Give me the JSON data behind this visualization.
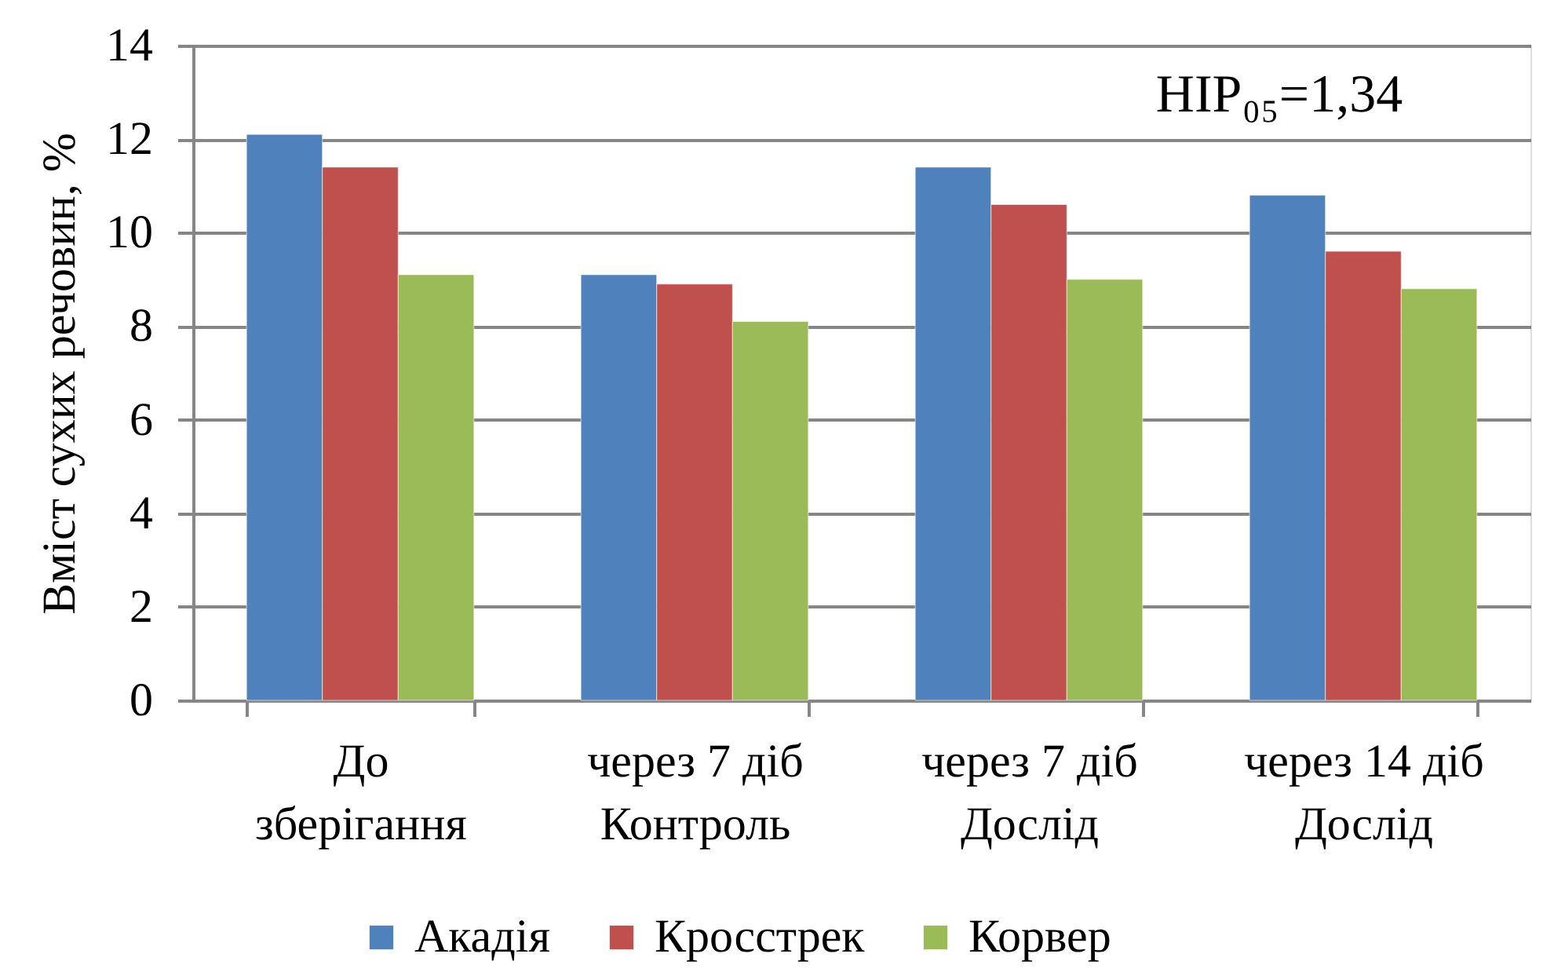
{
  "chart_data": {
    "type": "bar",
    "ylabel": "Вміст сухих речовин, %",
    "categories": [
      "До\nзберігання",
      "через 7 діб\nКонтроль",
      "через 7 діб\nДослід",
      "через 14 діб\nДослід"
    ],
    "series": [
      {
        "name": "Акадія",
        "color": "#4f81bd",
        "values": [
          12.1,
          9.1,
          11.4,
          10.8
        ]
      },
      {
        "name": "Кросстрек",
        "color": "#c0504d",
        "values": [
          11.4,
          8.9,
          10.6,
          9.6
        ]
      },
      {
        "name": "Корвер",
        "color": "#9bbb59",
        "values": [
          9.1,
          8.1,
          9.0,
          8.8
        ]
      }
    ],
    "ylim": [
      0,
      14
    ],
    "yticks": [
      0,
      2,
      4,
      6,
      8,
      10,
      12,
      14
    ],
    "grid": "y",
    "legend": "bottom",
    "annotations": [
      "HIP₀₅=1,34"
    ]
  }
}
